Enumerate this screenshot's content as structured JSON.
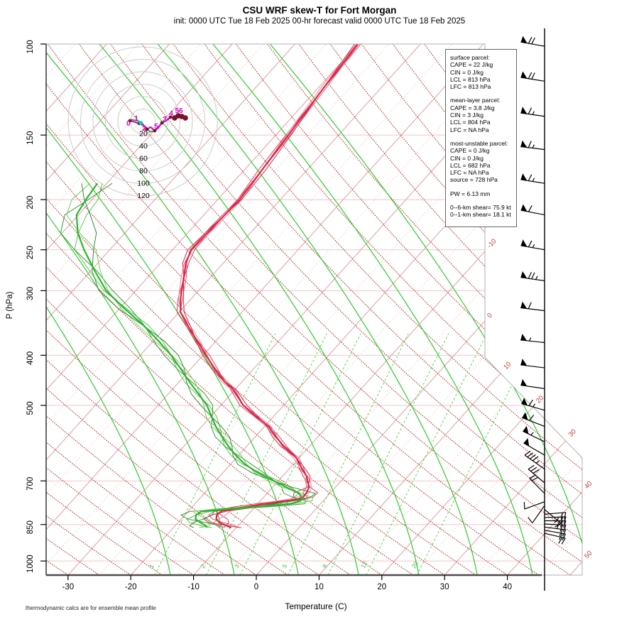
{
  "header": {
    "title": "CSU WRF skew-T for Fort Morgan",
    "subtitle": "init: 0000 UTC Tue 18 Feb 2025    00-hr forecast valid 0000 UTC Tue 18 Feb 2025"
  },
  "footnote": "thermodynamic calcs are for ensemble mean profile",
  "axes": {
    "xlabel": "Temperature (C)",
    "ylabel": "P (hPa)",
    "x_ticks": [
      -30,
      -20,
      -10,
      0,
      10,
      20,
      30,
      40
    ],
    "p_ticks": [
      100,
      150,
      200,
      250,
      300,
      400,
      500,
      700,
      850,
      1000
    ]
  },
  "info_box": {
    "blocks": [
      {
        "lines": [
          "surface parcel:",
          "CAPE = 22 J/kg",
          "CIN = 0 J/kg",
          "LCL = 813 hPa",
          "LFC = 813 hPa"
        ]
      },
      {
        "lines": [
          "mean-layer parcel:",
          "CAPE = 3.8 J/kg",
          "CIN = 3 J/kg",
          "LCL = 804 hPa",
          "LFC = NA hPa"
        ]
      },
      {
        "lines": [
          "most-unstable parcel:",
          "CAPE = 0 J/kg",
          "CIN = 0 J/kg",
          "LCL = 682 hPa",
          "LFC = NA hPa",
          "source = 728 hPa"
        ]
      },
      {
        "lines": [
          "PW =  6.13 mm"
        ]
      },
      {
        "lines": [
          "0--6-km shear= 75.9 kt",
          "0--1-km shear= 18.1 kt"
        ]
      }
    ]
  },
  "chart_data": {
    "type": "line",
    "variant": "skew-T log-p ensemble sounding with hodograph inset and wind barbs",
    "title": "CSU WRF skew-T for Fort Morgan",
    "xlabel": "Temperature (C)",
    "ylabel": "P (hPa)",
    "x_ticks": [
      -30,
      -20,
      -10,
      0,
      10,
      20,
      30,
      40
    ],
    "p_ticks": [
      100,
      150,
      200,
      250,
      300,
      400,
      500,
      700,
      850,
      1000
    ],
    "isotherm_label_values": [
      -10,
      0,
      10,
      20,
      30,
      40,
      50
    ],
    "isotherms": {
      "start": -115,
      "end": 55,
      "major_step": 10,
      "minor_step": 5
    },
    "dry_adiabats": {
      "base_t_start": -65,
      "base_t_end": 115,
      "step_c": 5
    },
    "moist_adiabat_base_t": [
      -13.7,
      -3.5,
      6.7,
      16.3,
      25.9,
      35.2,
      44.0,
      53.1
    ],
    "mixing_ratio": [
      {
        "value": 1,
        "t_at_base": -16.2
      },
      {
        "value": 2,
        "t_at_base": -8.0
      },
      {
        "value": 3,
        "t_at_base": -2.6
      },
      {
        "value": 5,
        "t_at_base": 5.0
      },
      {
        "value": 8,
        "t_at_base": 11.4
      },
      {
        "value": 12,
        "t_at_base": 17.5
      },
      {
        "value": 20,
        "t_at_base": 25.6
      }
    ],
    "series": [
      {
        "name": "temperature",
        "color": "#d6274a",
        "points": [
          [
            100,
            -60
          ],
          [
            120,
            -59.2
          ],
          [
            150,
            -58
          ],
          [
            175,
            -57.2
          ],
          [
            200,
            -56.5
          ],
          [
            225,
            -56.8
          ],
          [
            250,
            -57
          ],
          [
            265,
            -56
          ],
          [
            282,
            -54.3
          ],
          [
            310,
            -51.8
          ],
          [
            330,
            -49.8
          ],
          [
            355,
            -46
          ],
          [
            378,
            -42.6
          ],
          [
            400,
            -39.5
          ],
          [
            425,
            -36.2
          ],
          [
            450,
            -32.8
          ],
          [
            465,
            -30.4
          ],
          [
            500,
            -26.4
          ],
          [
            525,
            -22.8
          ],
          [
            548,
            -19.5
          ],
          [
            575,
            -16.7
          ],
          [
            600,
            -14.1
          ],
          [
            632,
            -10.4
          ],
          [
            660,
            -8.2
          ],
          [
            685,
            -6.2
          ],
          [
            700,
            -5.3
          ],
          [
            720,
            -4.2
          ],
          [
            738,
            -3.8
          ],
          [
            752,
            -3.7
          ],
          [
            760,
            -4.4
          ],
          [
            772,
            -8.0
          ],
          [
            788,
            -12.0
          ],
          [
            800,
            -14.7
          ],
          [
            815,
            -14.9
          ],
          [
            830,
            -14.4
          ],
          [
            843,
            -13.4
          ],
          [
            853,
            -12.0
          ],
          [
            862,
            -10.8
          ]
        ]
      },
      {
        "name": "dewpoint",
        "color": "#2cb42c",
        "points": [
          [
            186,
            -81.5
          ],
          [
            200,
            -81.0
          ],
          [
            214,
            -80.3
          ],
          [
            232,
            -77.5
          ],
          [
            250,
            -74.1
          ],
          [
            275,
            -69.3
          ],
          [
            300,
            -64.7
          ],
          [
            325,
            -59.2
          ],
          [
            350,
            -53.8
          ],
          [
            375,
            -49.2
          ],
          [
            400,
            -45.1
          ],
          [
            425,
            -41.6
          ],
          [
            450,
            -38.4
          ],
          [
            475,
            -35.2
          ],
          [
            500,
            -32.2
          ],
          [
            525,
            -29.9
          ],
          [
            550,
            -27.7
          ],
          [
            575,
            -25.3
          ],
          [
            600,
            -22.9
          ],
          [
            625,
            -20.4
          ],
          [
            650,
            -17.7
          ],
          [
            675,
            -14.4
          ],
          [
            700,
            -10.7
          ],
          [
            720,
            -7.8
          ],
          [
            740,
            -4.9
          ],
          [
            755,
            -3.8
          ],
          [
            765,
            -3.6
          ],
          [
            775,
            -4.8
          ],
          [
            785,
            -9.5
          ],
          [
            792,
            -13.5
          ],
          [
            802,
            -17.9
          ],
          [
            815,
            -18.2
          ],
          [
            830,
            -17.7
          ],
          [
            843,
            -16.4
          ],
          [
            855,
            -15.1
          ],
          [
            862,
            -14.7
          ]
        ]
      }
    ],
    "ensemble_members": 4,
    "wind_barbs": [
      [
        101,
        70,
        280
      ],
      [
        118,
        70,
        279
      ],
      [
        138,
        65,
        278
      ],
      [
        160,
        65,
        277
      ],
      [
        186,
        65,
        279
      ],
      [
        214,
        60,
        281
      ],
      [
        250,
        65,
        280
      ],
      [
        287,
        75,
        278
      ],
      [
        328,
        60,
        277
      ],
      [
        378,
        55,
        276
      ],
      [
        423,
        50,
        277
      ],
      [
        464,
        50,
        278
      ],
      [
        511,
        65,
        286
      ],
      [
        549,
        60,
        291
      ],
      [
        588,
        55,
        296
      ],
      [
        624,
        50,
        300
      ],
      [
        664,
        45,
        305
      ],
      [
        706,
        30,
        310
      ],
      [
        740,
        20,
        315
      ],
      [
        768,
        10,
        250
      ],
      [
        781,
        10,
        215
      ],
      [
        795,
        15,
        130
      ],
      [
        812,
        20,
        85
      ],
      [
        824,
        25,
        88
      ],
      [
        836,
        28,
        90
      ],
      [
        848,
        25,
        93
      ],
      [
        860,
        22,
        97
      ],
      [
        872,
        20,
        100
      ],
      [
        884,
        18,
        103
      ]
    ],
    "hodograph": {
      "units": "kt",
      "ring_labels": [
        20,
        40,
        60,
        80,
        100,
        120
      ],
      "trace_uv": [
        [
          -20.6,
          1.1
        ],
        [
          -12.6,
          -1.1
        ],
        [
          -5.7,
          -3.4
        ],
        [
          1.1,
          -5.7
        ],
        [
          6.9,
          -12.6
        ],
        [
          12.6,
          -9.1
        ],
        [
          19.4,
          -14.9
        ],
        [
          25.1,
          -10.3
        ],
        [
          30.9,
          -2.3
        ],
        [
          37.7,
          1.1
        ],
        [
          44.6,
          6.9
        ],
        [
          51.4,
          5.7
        ],
        [
          57.1,
          9.1
        ],
        [
          62.9,
          8.0
        ],
        [
          68.6,
          5.7
        ]
      ],
      "green_segments_uv": [
        [
          [
            -19,
            3
          ],
          [
            -8,
            1
          ],
          [
            1,
            -4
          ]
        ],
        [
          [
            4,
            -8
          ],
          [
            12,
            -17
          ],
          [
            20,
            -15
          ]
        ]
      ],
      "cyan_marker_uv": [
        -3.4,
        -2.3
      ],
      "height_labels": [
        [
          "0",
          -22.9,
          -6.9
        ],
        [
          "1",
          -10.3,
          1.1
        ],
        [
          "2",
          2.3,
          -14.9
        ],
        [
          "5",
          21.7,
          -11.4
        ],
        [
          "3",
          35.4,
          0
        ],
        [
          "4",
          45.7,
          9.1
        ],
        [
          "56",
          58.3,
          13.7
        ]
      ]
    },
    "colors": {
      "temperature": "#d6274a",
      "dewpoint": "#2cb42c",
      "isotherm_major": "#e09e9e",
      "isotherm_minor": "#f3cdcd",
      "dry_adiabat": "#a8271d",
      "moist_adiabat": "#2ecc2e",
      "mixing_ratio": "#55d655",
      "pressure_line": "#f3c6c6",
      "isotherm_label": "#c04040",
      "hodo_trace": "#cc00cc",
      "hodo_dot": "#7d1128",
      "hodo_green": "#22aa22",
      "hodo_cyan": "#00cccc"
    }
  }
}
